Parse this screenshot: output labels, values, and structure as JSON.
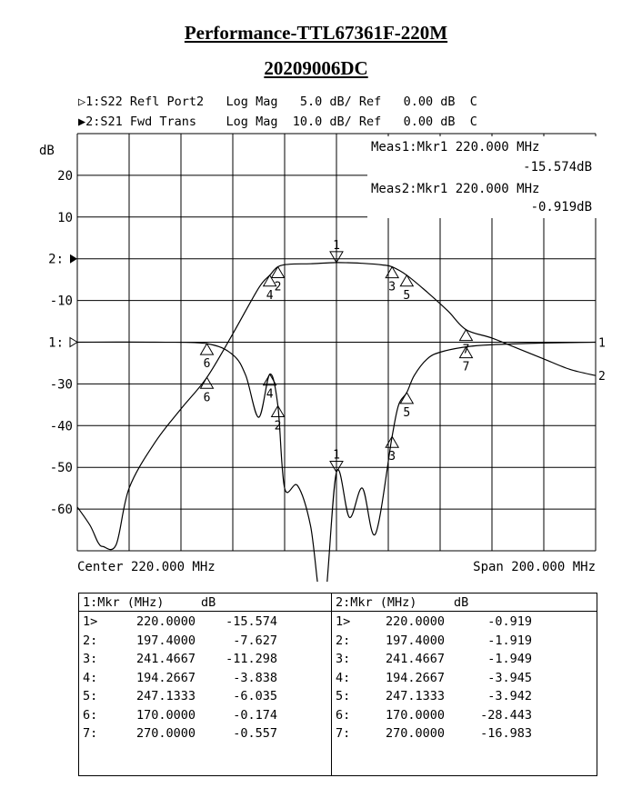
{
  "title": "Performance-TTL67361F-220M",
  "subtitle": "20209006DC",
  "traces": {
    "t1": "▷1:S22 Refl Port2   Log Mag   5.0 dB/ Ref   0.00 dB  C",
    "t2": "▶2:S21 Fwd Trans    Log Mag  10.0 dB/ Ref   0.00 dB  C"
  },
  "meas": {
    "m1_line1": "Meas1:Mkr1  220.000 MHz",
    "m1_line2": "-15.574dB",
    "m2_line1": "Meas2:Mkr1  220.000 MHz",
    "m2_line2": "-0.919dB"
  },
  "axis": {
    "unit": "dB",
    "center": "Center 220.000 MHz",
    "span": "Span 200.000 MHz",
    "ref2": "2:",
    "ref1": "1:"
  },
  "tables": {
    "t1": {
      "header": "1:Mkr (MHz)     dB",
      "rows": [
        [
          "1>",
          "220.0000",
          "-15.574"
        ],
        [
          "2:",
          "197.4000",
          "-7.627"
        ],
        [
          "3:",
          "241.4667",
          "-11.298"
        ],
        [
          "4:",
          "194.2667",
          "-3.838"
        ],
        [
          "5:",
          "247.1333",
          "-6.035"
        ],
        [
          "6:",
          "170.0000",
          "-0.174"
        ],
        [
          "7:",
          "270.0000",
          "-0.557"
        ]
      ]
    },
    "t2": {
      "header": "2:Mkr (MHz)     dB",
      "rows": [
        [
          "1>",
          "220.0000",
          "-0.919"
        ],
        [
          "2:",
          "197.4000",
          "-1.919"
        ],
        [
          "3:",
          "241.4667",
          "-1.949"
        ],
        [
          "4:",
          "194.2667",
          "-3.945"
        ],
        [
          "5:",
          "247.1333",
          "-3.942"
        ],
        [
          "6:",
          "170.0000",
          "-28.443"
        ],
        [
          "7:",
          "270.0000",
          "-16.983"
        ]
      ]
    }
  },
  "chart_data": {
    "type": "line",
    "title": "Performance-TTL67361F-220M",
    "subtitle": "20209006DC",
    "xlabel": "",
    "ylabel": "dB",
    "xlim": [
      120,
      320
    ],
    "ylim": [
      -70,
      30
    ],
    "y_ticks": [
      20,
      10,
      -10,
      -30,
      -40,
      -50,
      -60
    ],
    "grid": true,
    "series": [
      {
        "name": "1:S22 Refl Port2",
        "scale": "5.0 dB/div",
        "ref": "0.00 dB",
        "x": [
          120,
          150,
          170,
          180,
          185,
          190,
          194.27,
          197.4,
          200,
          205,
          210,
          215,
          220,
          225,
          230,
          235,
          241.47,
          244,
          247.13,
          250,
          255,
          260,
          270,
          280,
          300,
          320
        ],
        "y": [
          0,
          0,
          -0.174,
          -1.5,
          -4,
          -9,
          -3.838,
          -7.627,
          -17.5,
          -17.2,
          -22,
          -32,
          -15.574,
          -21,
          -17.5,
          -23,
          -11.298,
          -7.5,
          -6.035,
          -4,
          -2,
          -1.2,
          -0.557,
          -0.3,
          -0.1,
          0
        ]
      },
      {
        "name": "2:S21 Fwd Trans",
        "scale": "10.0 dB/div",
        "ref": "0.00 dB",
        "x": [
          120,
          125,
          128,
          130,
          135,
          140,
          150,
          160,
          170,
          180,
          190,
          194.27,
          197.4,
          202,
          210,
          220,
          230,
          238,
          241.47,
          247.13,
          255,
          263,
          270,
          280,
          290,
          300,
          310,
          320
        ],
        "y": [
          -59.5,
          -64,
          -68,
          -69,
          -68.5,
          -55,
          -44,
          -36,
          -28.443,
          -18,
          -7,
          -3.945,
          -1.919,
          -1.3,
          -1.2,
          -0.919,
          -1.1,
          -1.5,
          -1.949,
          -3.942,
          -8,
          -12.5,
          -16.983,
          -19,
          -21.5,
          -24,
          -26.5,
          -28
        ]
      }
    ],
    "markers": [
      "1",
      "2",
      "3",
      "4",
      "5",
      "6",
      "7"
    ],
    "trace_end_labels": [
      "1",
      "2"
    ]
  }
}
